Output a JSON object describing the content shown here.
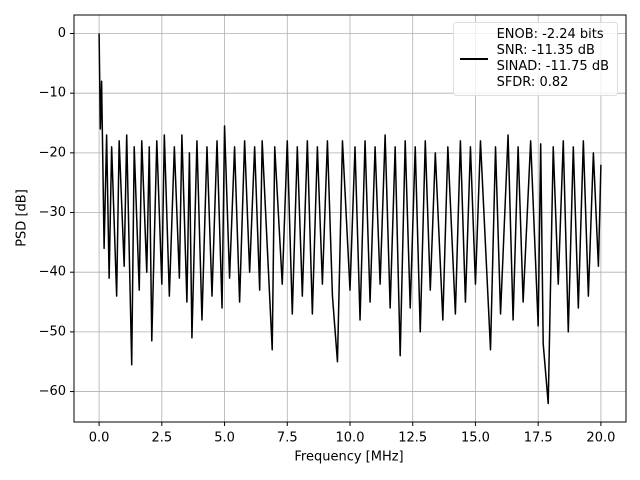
{
  "chart_data": {
    "type": "line",
    "xlabel": "Frequency [MHz]",
    "ylabel": "PSD [dB]",
    "x": [
      0,
      0.05,
      0.1,
      0.2,
      0.3,
      0.4,
      0.5,
      0.7,
      0.8,
      1.0,
      1.1,
      1.3,
      1.4,
      1.6,
      1.7,
      1.9,
      2.0,
      2.1,
      2.3,
      2.5,
      2.6,
      2.8,
      3.0,
      3.2,
      3.3,
      3.5,
      3.6,
      3.7,
      3.9,
      4.1,
      4.3,
      4.5,
      4.7,
      4.9,
      5.0,
      5.2,
      5.4,
      5.6,
      5.8,
      6.0,
      6.2,
      6.4,
      6.5,
      6.9,
      7.0,
      7.3,
      7.5,
      7.7,
      7.9,
      8.1,
      8.3,
      8.5,
      8.7,
      8.9,
      9.1,
      9.3,
      9.5,
      9.7,
      10.0,
      10.2,
      10.4,
      10.6,
      10.8,
      11.0,
      11.2,
      11.4,
      11.6,
      11.8,
      12.0,
      12.2,
      12.4,
      12.6,
      12.8,
      13.0,
      13.2,
      13.4,
      13.7,
      13.9,
      14.2,
      14.4,
      14.6,
      14.8,
      15.0,
      15.2,
      15.6,
      15.8,
      16.0,
      16.3,
      16.5,
      16.7,
      16.9,
      17.2,
      17.5,
      17.6,
      17.7,
      17.9,
      18.1,
      18.3,
      18.5,
      18.7,
      18.9,
      19.1,
      19.3,
      19.5,
      19.7,
      19.9,
      20.0
    ],
    "series": [
      {
        "name": "ENOB: -2.24 bits\nSNR: -11.35 dB\nSINAD: -11.75 dB\nSFDR: 0.82",
        "color": "#000000",
        "values": [
          0,
          -16,
          -8,
          -36,
          -17,
          -41,
          -19,
          -44,
          -18,
          -39,
          -17,
          -55.5,
          -19,
          -43,
          -18,
          -40,
          -19,
          -51.5,
          -18,
          -42,
          -17,
          -44,
          -19,
          -41,
          -17,
          -45,
          -20,
          -51,
          -18,
          -48,
          -19,
          -44,
          -18,
          -46,
          -15.5,
          -41,
          -19,
          -45,
          -18,
          -40,
          -19,
          -43,
          -18,
          -53,
          -19,
          -42,
          -18,
          -47,
          -19,
          -44,
          -18,
          -47,
          -19,
          -42,
          -18,
          -44,
          -55,
          -18,
          -43,
          -19,
          -48,
          -18,
          -45,
          -19,
          -42,
          -17,
          -46,
          -19,
          -54,
          -18,
          -46,
          -19,
          -50,
          -18,
          -43,
          -20,
          -48,
          -19,
          -47,
          -18,
          -45,
          -19,
          -42,
          -18,
          -53,
          -19,
          -47,
          -17,
          -48,
          -19,
          -45,
          -18,
          -49,
          -18.5,
          -52,
          -62,
          -19,
          -42,
          -18,
          -50,
          -19,
          -46,
          -18,
          -44,
          -20,
          -39,
          -22
        ]
      }
    ],
    "xlim": [
      -1,
      21
    ],
    "ylim": [
      -65.1,
      3.1
    ],
    "xticks": [
      {
        "value": 0,
        "label": "0.0"
      },
      2.5,
      {
        "value": 5,
        "label": "5.0"
      },
      7.5,
      {
        "value": 10,
        "label": "10.0"
      },
      12.5,
      {
        "value": 15,
        "label": "15.0"
      },
      17.5,
      {
        "value": 20,
        "label": "20.0"
      }
    ],
    "yticks": [
      {
        "value": -60,
        "label": "−60"
      },
      {
        "value": -50,
        "label": "−50"
      },
      {
        "value": -40,
        "label": "−40"
      },
      {
        "value": -30,
        "label": "−30"
      },
      {
        "value": -20,
        "label": "−20"
      },
      {
        "value": -10,
        "label": "−10"
      },
      0
    ],
    "grid": true,
    "legend": "upper right"
  }
}
